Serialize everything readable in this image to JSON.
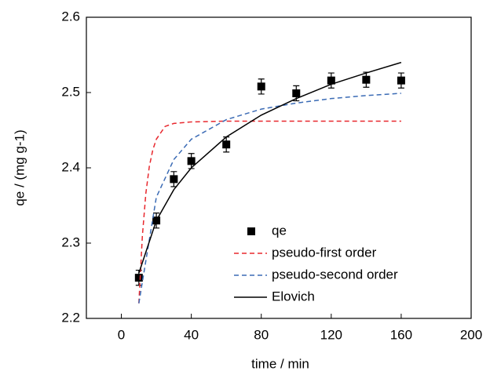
{
  "chart_data": {
    "type": "scatter-line",
    "xlabel": "time / min",
    "ylabel": "qe / (mg g-1)",
    "xlim": [
      -20,
      200
    ],
    "xticks": [
      0,
      40,
      80,
      120,
      160,
      200
    ],
    "ylim": [
      2.2,
      2.6
    ],
    "yticks": [
      2.2,
      2.3,
      2.4,
      2.5,
      2.6
    ],
    "series": [
      {
        "name": "qe",
        "kind": "points",
        "color": "#000000",
        "x": [
          10,
          20,
          30,
          40,
          60,
          80,
          100,
          120,
          140,
          160
        ],
        "values": [
          2.254,
          2.33,
          2.385,
          2.409,
          2.431,
          2.508,
          2.499,
          2.516,
          2.517,
          2.516
        ],
        "errors": [
          0.01,
          0.01,
          0.01,
          0.01,
          0.01,
          0.01,
          0.01,
          0.01,
          0.01,
          0.01
        ]
      },
      {
        "name": "pseudo-first order",
        "kind": "line",
        "dash": "dashed",
        "color": "#e8282e",
        "x": [
          10,
          12,
          14,
          16,
          18,
          20,
          25,
          30,
          40,
          60,
          80,
          100,
          120,
          140,
          160
        ],
        "values": [
          2.22,
          2.309,
          2.366,
          2.402,
          2.424,
          2.438,
          2.455,
          2.459,
          2.461,
          2.462,
          2.462,
          2.462,
          2.462,
          2.462,
          2.462
        ]
      },
      {
        "name": "pseudo-second order",
        "kind": "line",
        "dash": "dashed",
        "color": "#3b6bb5",
        "x": [
          10,
          20,
          30,
          40,
          60,
          80,
          100,
          120,
          140,
          160
        ],
        "values": [
          2.22,
          2.361,
          2.411,
          2.438,
          2.464,
          2.478,
          2.486,
          2.492,
          2.496,
          2.499
        ]
      },
      {
        "name": "Elovich",
        "kind": "line",
        "dash": "solid",
        "color": "#000000",
        "x": [
          10,
          20,
          30,
          40,
          60,
          80,
          100,
          120,
          140,
          160
        ],
        "values": [
          2.26,
          2.33,
          2.371,
          2.4,
          2.441,
          2.47,
          2.492,
          2.511,
          2.526,
          2.54
        ]
      }
    ]
  }
}
